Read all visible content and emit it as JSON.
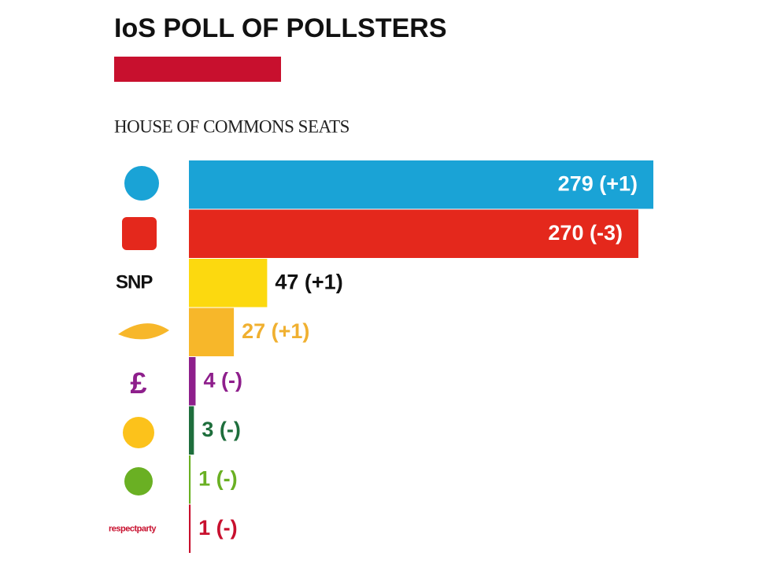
{
  "chart_data": {
    "type": "hbar",
    "title": "IoS POLL OF POLLSTERS",
    "subtitle": "HOUSE OF COMMONS SEATS",
    "categories": [
      null,
      null,
      "SNP",
      null,
      null,
      null,
      null,
      "respectparty"
    ],
    "values": [
      279,
      270,
      47,
      27,
      4,
      3,
      1,
      1
    ],
    "value_labels": [
      "279 (+1)",
      "270 (-3)",
      "47 (+1)",
      "27 (+1)",
      "4 (-)",
      "3 (-)",
      "1 (-)",
      "1 (-)"
    ],
    "colors": [
      "#1aa3d6",
      "#e4281c",
      "#fcd90f",
      "#f7b72a",
      "#8e1f8c",
      "#1e6e3c",
      "#6ab023",
      "#c8102e"
    ],
    "label_colors": [
      "#ffffff",
      "#ffffff",
      "#111111",
      "#f0b030",
      "#8e1f8c",
      "#1e6e3c",
      "#6ab023",
      "#c8102e"
    ],
    "accent_color": "#c8102e"
  }
}
